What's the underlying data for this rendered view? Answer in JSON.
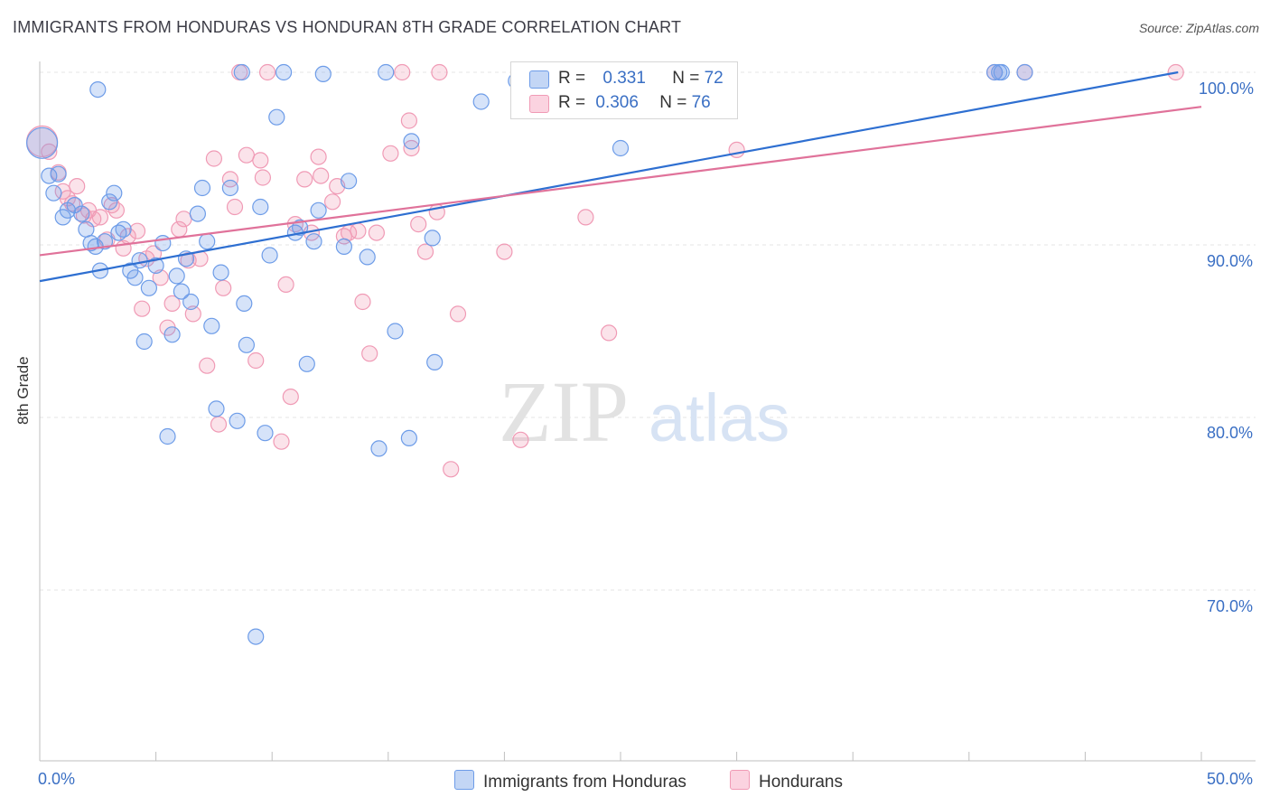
{
  "header": {
    "title": "IMMIGRANTS FROM HONDURAS VS HONDURAN 8TH GRADE CORRELATION CHART",
    "source": "Source: ZipAtlas.com"
  },
  "legend": {
    "row1": {
      "r_label": "R =",
      "r_value": "0.331",
      "n_label": "N =",
      "n_value": "72"
    },
    "row2": {
      "r_label": "R =",
      "r_value": "0.306",
      "n_label": "N =",
      "n_value": "76"
    }
  },
  "bottom_legend": {
    "series1": "Immigrants from Honduras",
    "series2": "Hondurans"
  },
  "axes": {
    "ylabel": "8th Grade",
    "x_left": "0.0%",
    "x_right": "50.0%",
    "y_ticks": [
      "100.0%",
      "90.0%",
      "80.0%",
      "70.0%"
    ]
  },
  "watermark": {
    "zip": "ZIP",
    "atlas": "atlas"
  },
  "colors": {
    "blue": "#6d9ce8",
    "pink": "#f09ab5",
    "blue_line": "#2e6fd1",
    "pink_line": "#e0729a",
    "accent_text": "#3a6fc4"
  },
  "chart_data": {
    "type": "scatter",
    "xlim": [
      0,
      50
    ],
    "ylim": [
      59.5,
      103
    ],
    "series": [
      {
        "name": "Immigrants from Honduras",
        "color": "#6d9ce8",
        "trend": [
          [
            0,
            87.9
          ],
          [
            49,
            100.0
          ]
        ],
        "points": [
          [
            0.1,
            95.9
          ],
          [
            0.4,
            94.0
          ],
          [
            0.6,
            93.0
          ],
          [
            0.8,
            94.1
          ],
          [
            1.0,
            91.6
          ],
          [
            1.2,
            92.0
          ],
          [
            1.5,
            92.3
          ],
          [
            1.8,
            91.8
          ],
          [
            2.0,
            90.9
          ],
          [
            2.2,
            90.1
          ],
          [
            2.4,
            89.9
          ],
          [
            2.6,
            88.5
          ],
          [
            2.8,
            90.2
          ],
          [
            3.0,
            92.5
          ],
          [
            3.2,
            93.0
          ],
          [
            3.4,
            90.7
          ],
          [
            3.6,
            90.9
          ],
          [
            3.9,
            88.5
          ],
          [
            4.1,
            88.1
          ],
          [
            4.3,
            89.1
          ],
          [
            4.5,
            84.4
          ],
          [
            4.7,
            87.5
          ],
          [
            5.0,
            88.8
          ],
          [
            5.3,
            90.1
          ],
          [
            5.5,
            78.9
          ],
          [
            5.7,
            84.8
          ],
          [
            5.9,
            88.2
          ],
          [
            6.1,
            87.3
          ],
          [
            6.3,
            89.2
          ],
          [
            6.5,
            86.7
          ],
          [
            6.8,
            91.8
          ],
          [
            7.0,
            93.3
          ],
          [
            7.2,
            90.2
          ],
          [
            7.4,
            85.3
          ],
          [
            7.6,
            80.5
          ],
          [
            7.8,
            88.4
          ],
          [
            8.2,
            93.3
          ],
          [
            8.5,
            79.8
          ],
          [
            8.8,
            86.6
          ],
          [
            8.9,
            84.2
          ],
          [
            9.3,
            67.3
          ],
          [
            9.5,
            92.2
          ],
          [
            9.7,
            79.1
          ],
          [
            9.9,
            89.4
          ],
          [
            10.2,
            97.4
          ],
          [
            10.5,
            100.0
          ],
          [
            11.0,
            90.7
          ],
          [
            11.2,
            91.0
          ],
          [
            11.5,
            83.1
          ],
          [
            11.8,
            90.2
          ],
          [
            12.0,
            92.0
          ],
          [
            12.2,
            99.9
          ],
          [
            13.1,
            89.9
          ],
          [
            13.3,
            93.7
          ],
          [
            14.1,
            89.3
          ],
          [
            14.6,
            78.2
          ],
          [
            14.9,
            100.0
          ],
          [
            15.3,
            85.0
          ],
          [
            15.9,
            78.8
          ],
          [
            16.9,
            90.4
          ],
          [
            17.0,
            83.2
          ],
          [
            19.0,
            98.3
          ],
          [
            23.8,
            100.0
          ],
          [
            25.0,
            95.6
          ],
          [
            41.1,
            100.0
          ],
          [
            41.3,
            100.0
          ],
          [
            41.4,
            100.0
          ],
          [
            42.4,
            100.0
          ],
          [
            8.7,
            100.0
          ],
          [
            2.5,
            99.0
          ],
          [
            16.0,
            96.0
          ],
          [
            20.5,
            99.5
          ]
        ]
      },
      {
        "name": "Hondurans",
        "color": "#f09ab5",
        "trend": [
          [
            0,
            89.4
          ],
          [
            50,
            98.0
          ]
        ],
        "points": [
          [
            0.1,
            96.0
          ],
          [
            0.4,
            95.4
          ],
          [
            0.8,
            94.2
          ],
          [
            1.0,
            93.1
          ],
          [
            1.2,
            92.7
          ],
          [
            1.4,
            92.4
          ],
          [
            1.6,
            93.4
          ],
          [
            1.9,
            91.7
          ],
          [
            2.1,
            92.0
          ],
          [
            2.3,
            91.5
          ],
          [
            2.6,
            91.6
          ],
          [
            2.9,
            90.3
          ],
          [
            3.1,
            92.3
          ],
          [
            3.3,
            92.0
          ],
          [
            3.6,
            89.8
          ],
          [
            3.8,
            90.5
          ],
          [
            4.2,
            90.8
          ],
          [
            4.4,
            86.3
          ],
          [
            4.6,
            89.2
          ],
          [
            4.9,
            89.5
          ],
          [
            5.2,
            88.1
          ],
          [
            5.5,
            85.2
          ],
          [
            5.7,
            86.6
          ],
          [
            6.0,
            90.9
          ],
          [
            6.2,
            91.5
          ],
          [
            6.4,
            89.1
          ],
          [
            6.6,
            86.0
          ],
          [
            6.9,
            89.2
          ],
          [
            7.2,
            83.0
          ],
          [
            7.5,
            95.0
          ],
          [
            7.7,
            79.6
          ],
          [
            7.9,
            87.5
          ],
          [
            8.2,
            93.8
          ],
          [
            8.4,
            92.2
          ],
          [
            8.6,
            100.0
          ],
          [
            8.9,
            95.2
          ],
          [
            9.3,
            83.3
          ],
          [
            9.5,
            94.9
          ],
          [
            9.6,
            93.9
          ],
          [
            9.8,
            100.0
          ],
          [
            10.4,
            78.6
          ],
          [
            10.6,
            87.7
          ],
          [
            10.8,
            81.2
          ],
          [
            11.0,
            91.2
          ],
          [
            11.4,
            93.8
          ],
          [
            11.7,
            90.7
          ],
          [
            12.0,
            95.1
          ],
          [
            12.1,
            94.0
          ],
          [
            12.6,
            92.5
          ],
          [
            12.8,
            93.4
          ],
          [
            13.1,
            90.5
          ],
          [
            13.3,
            90.7
          ],
          [
            13.7,
            90.8
          ],
          [
            13.9,
            86.7
          ],
          [
            14.2,
            83.7
          ],
          [
            14.5,
            90.7
          ],
          [
            15.1,
            95.3
          ],
          [
            15.6,
            100.0
          ],
          [
            15.9,
            97.2
          ],
          [
            16.0,
            95.6
          ],
          [
            16.3,
            91.2
          ],
          [
            16.6,
            89.6
          ],
          [
            17.1,
            91.9
          ],
          [
            17.2,
            100.0
          ],
          [
            17.7,
            77.0
          ],
          [
            18.0,
            86.0
          ],
          [
            20.0,
            89.6
          ],
          [
            20.7,
            78.7
          ],
          [
            23.5,
            91.6
          ],
          [
            24.5,
            84.9
          ],
          [
            30.0,
            95.5
          ],
          [
            41.1,
            100.0
          ],
          [
            42.4,
            100.0
          ],
          [
            48.9,
            100.0
          ],
          [
            26.0,
            100.0
          ],
          [
            28.5,
            100.0
          ]
        ]
      }
    ]
  }
}
